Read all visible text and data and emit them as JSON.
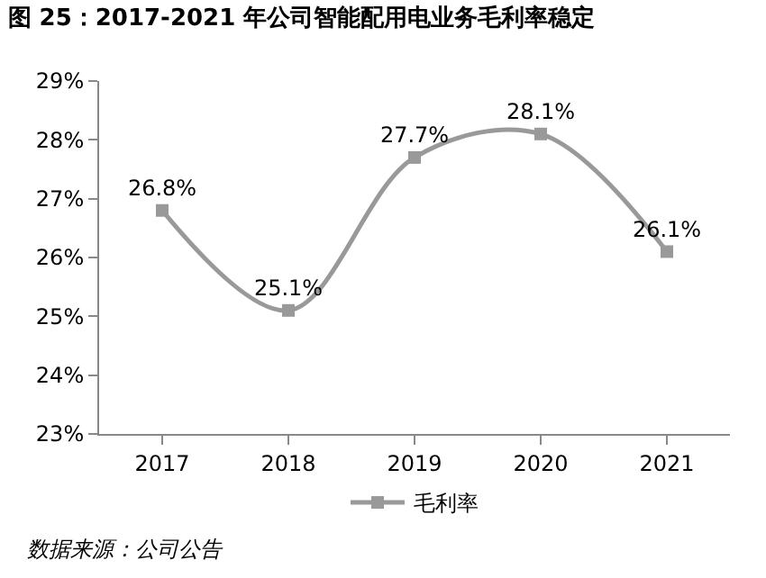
{
  "chart_data": {
    "type": "line",
    "title": "图 25：2017-2021 年公司智能配用电业务毛利率稳定",
    "categories": [
      "2017",
      "2018",
      "2019",
      "2020",
      "2021"
    ],
    "series": [
      {
        "name": "毛利率",
        "color": "#999999",
        "values": [
          26.8,
          25.1,
          27.7,
          28.1,
          26.1
        ],
        "value_labels": [
          "26.8%",
          "25.1%",
          "27.7%",
          "28.1%",
          "26.1%"
        ]
      }
    ],
    "ylim": [
      23,
      29
    ],
    "yticks": [
      {
        "value": 23,
        "label": "23%"
      },
      {
        "value": 24,
        "label": "24%"
      },
      {
        "value": 25,
        "label": "25%"
      },
      {
        "value": 26,
        "label": "26%"
      },
      {
        "value": 27,
        "label": "27%"
      },
      {
        "value": 28,
        "label": "28%"
      },
      {
        "value": 29,
        "label": "29%"
      }
    ],
    "marker": "square",
    "line_style": "solid",
    "legend": "bottom",
    "annotations": [
      "数据来源：公司公告"
    ]
  }
}
